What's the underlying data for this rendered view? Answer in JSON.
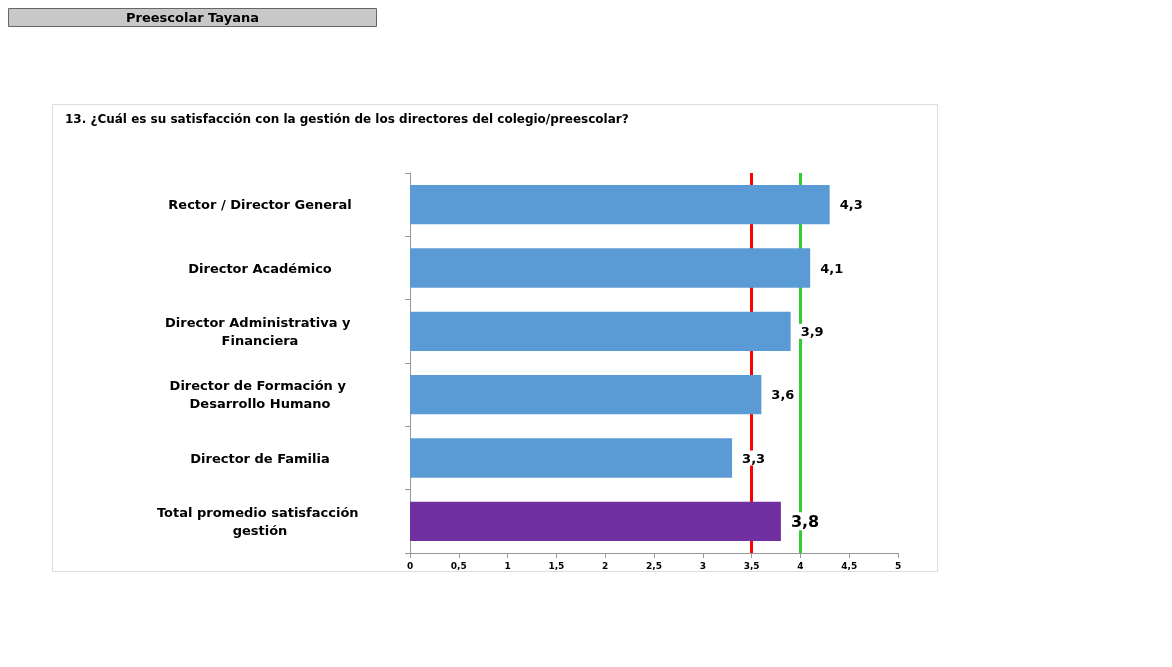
{
  "chart_data": {
    "type": "bar",
    "orientation": "horizontal",
    "title": "Preescolar Tayana",
    "subtitle": "13. ¿Cuál es su satisfacción con la gestión de los directores del colegio/preescolar?",
    "categories": [
      "Rector / Director General",
      "Director Académico",
      "Director Administrativa y Financiera",
      "Director de Formación y Desarrollo Humano",
      "Director de Familia",
      "Total promedio satisfacción gestión"
    ],
    "values": [
      4.3,
      4.1,
      3.9,
      3.6,
      3.3,
      3.8
    ],
    "colors": [
      "#5b9bd5",
      "#5b9bd5",
      "#5b9bd5",
      "#5b9bd5",
      "#5b9bd5",
      "#7030a0"
    ],
    "value_labels": [
      "4,3",
      "4,1",
      "3,9",
      "3,6",
      "3,3",
      "3,8"
    ],
    "xlim": [
      0,
      5
    ],
    "xticks": [
      0,
      {
        "value": 0.5,
        "label": "0,5"
      },
      1,
      {
        "value": 1.5,
        "label": "1,5"
      },
      2,
      {
        "value": 2.5,
        "label": "2,5"
      },
      3,
      {
        "value": 3.5,
        "label": "3,5"
      },
      4,
      {
        "value": 4.5,
        "label": "4,5"
      },
      5
    ],
    "ref_lines": [
      {
        "axis": "x",
        "value": 3.5,
        "label": null,
        "color": "#ff0000"
      },
      {
        "axis": "x",
        "value": 4,
        "label": null,
        "color": "#33cc33"
      }
    ],
    "grid": false
  }
}
